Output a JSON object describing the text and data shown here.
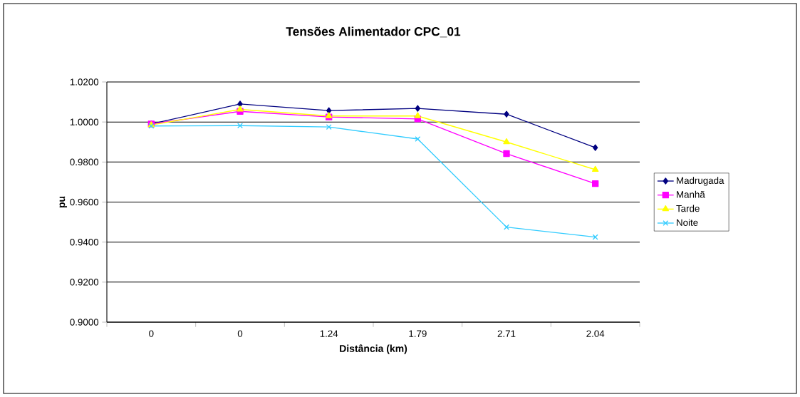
{
  "chart_data": {
    "type": "line",
    "title": "Tensões Alimentador CPC_01",
    "xlabel": "Distância (km)",
    "ylabel": "pu",
    "categories": [
      "0",
      "0",
      "1.24",
      "1.79",
      "2.71",
      "2.04"
    ],
    "series": [
      {
        "name": "Madrugada",
        "color": "#000080",
        "marker": "diamond",
        "values": [
          0.999,
          1.009,
          1.0057,
          1.0068,
          1.0039,
          0.9872
        ]
      },
      {
        "name": "Manhã",
        "color": "#ff00ff",
        "marker": "square",
        "values": [
          0.999,
          1.0053,
          1.0025,
          1.0015,
          0.9842,
          0.9692
        ]
      },
      {
        "name": "Tarde",
        "color": "#ffff00",
        "marker": "triangle",
        "values": [
          0.9985,
          1.0063,
          1.003,
          1.003,
          0.99,
          0.9762
        ]
      },
      {
        "name": "Noite",
        "color": "#33ccff",
        "marker": "cross",
        "values": [
          0.998,
          0.9982,
          0.9975,
          0.9915,
          0.9475,
          0.9425
        ]
      }
    ],
    "ylim": [
      0.9,
      1.02
    ],
    "yticks": [
      {
        "value": 0.9,
        "label": "0.9000"
      },
      {
        "value": 0.92,
        "label": "0.9200"
      },
      {
        "value": 0.94,
        "label": "0.9400"
      },
      {
        "value": 0.96,
        "label": "0.9600"
      },
      {
        "value": 0.98,
        "label": "0.9800"
      },
      {
        "value": 1.0,
        "label": "1.0000"
      },
      {
        "value": 1.02,
        "label": "1.0200"
      }
    ],
    "grid": "y",
    "legend": "right",
    "line_style": "solid"
  }
}
